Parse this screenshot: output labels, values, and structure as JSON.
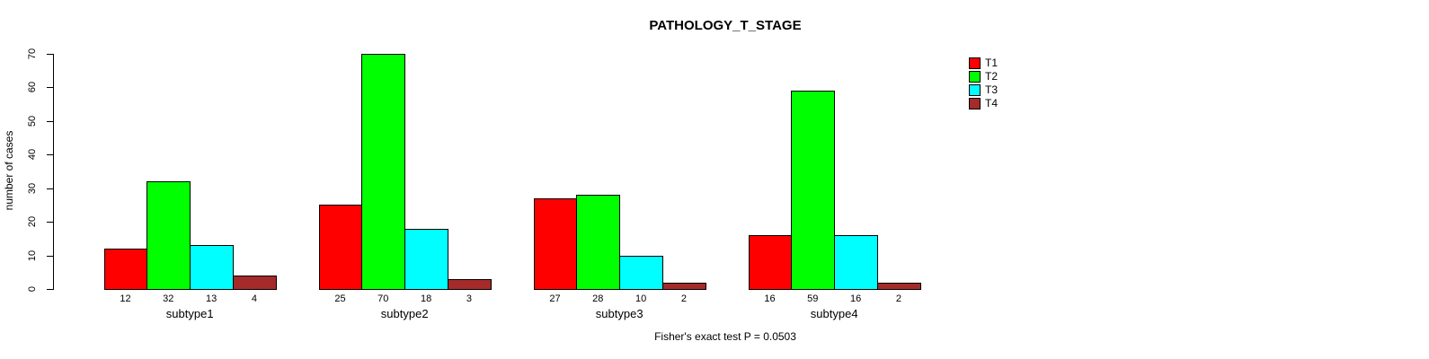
{
  "title": "PATHOLOGY_T_STAGE",
  "footer": "Fisher's exact test P = 0.0503",
  "chart_data": {
    "type": "bar",
    "title": "PATHOLOGY_T_STAGE",
    "xlabel": "",
    "ylabel": "number of cases",
    "ylim": [
      0,
      70
    ],
    "yticks": [
      0,
      10,
      20,
      30,
      40,
      50,
      60,
      70
    ],
    "grid": false,
    "legend_position": "top-right",
    "bar_value_labels": true,
    "categories": [
      "subtype1",
      "subtype2",
      "subtype3",
      "subtype4"
    ],
    "series": [
      {
        "name": "T1",
        "color": "#ff0000",
        "values": [
          12,
          25,
          27,
          16
        ]
      },
      {
        "name": "T2",
        "color": "#00ff00",
        "values": [
          32,
          70,
          28,
          59
        ]
      },
      {
        "name": "T3",
        "color": "#00ffff",
        "values": [
          13,
          18,
          10,
          16
        ]
      },
      {
        "name": "T4",
        "color": "#a52a2a",
        "values": [
          4,
          3,
          2,
          2
        ]
      }
    ],
    "annotation": "Fisher's exact test P = 0.0503"
  }
}
